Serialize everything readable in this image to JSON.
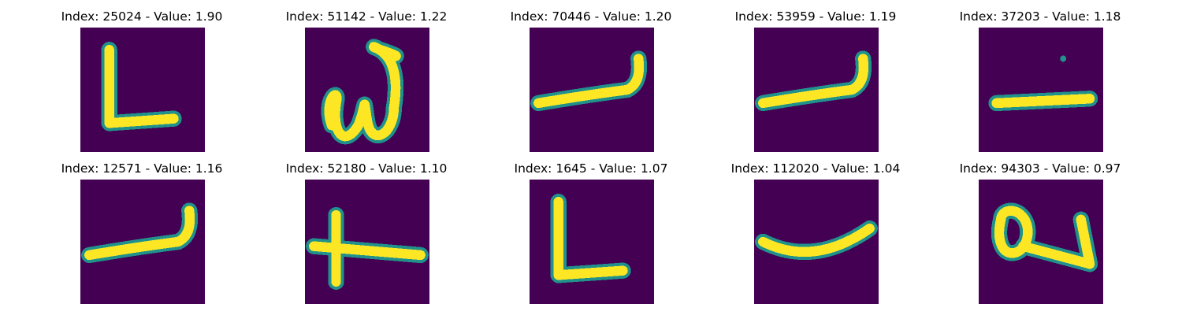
{
  "colors": {
    "background": "#440154",
    "stroke_mid": "#21918c",
    "stroke_core": "#fde725",
    "stroke_edge": "#5ec962"
  },
  "panels": [
    {
      "title": "Index: 25024 - Value: 1.90",
      "glyph": "l-shape-glyph"
    },
    {
      "title": "Index: 51142 - Value: 1.22",
      "glyph": "script-w-glyph"
    },
    {
      "title": "Index: 70446 - Value: 1.20",
      "glyph": "hook-right-glyph"
    },
    {
      "title": "Index: 53959 - Value: 1.19",
      "glyph": "hook-right-glyph"
    },
    {
      "title": "Index: 37203 - Value: 1.18",
      "glyph": "dash-dot-glyph"
    },
    {
      "title": "Index: 12571 - Value: 1.16",
      "glyph": "hook-right-glyph"
    },
    {
      "title": "Index: 52180 - Value: 1.10",
      "glyph": "cross-glyph"
    },
    {
      "title": "Index: 1645 - Value: 1.07",
      "glyph": "l-shape-glyph"
    },
    {
      "title": "Index: 112020 - Value: 1.04",
      "glyph": "curve-glyph"
    },
    {
      "title": "Index: 94303 - Value: 0.97",
      "glyph": "loop-glyph"
    }
  ]
}
